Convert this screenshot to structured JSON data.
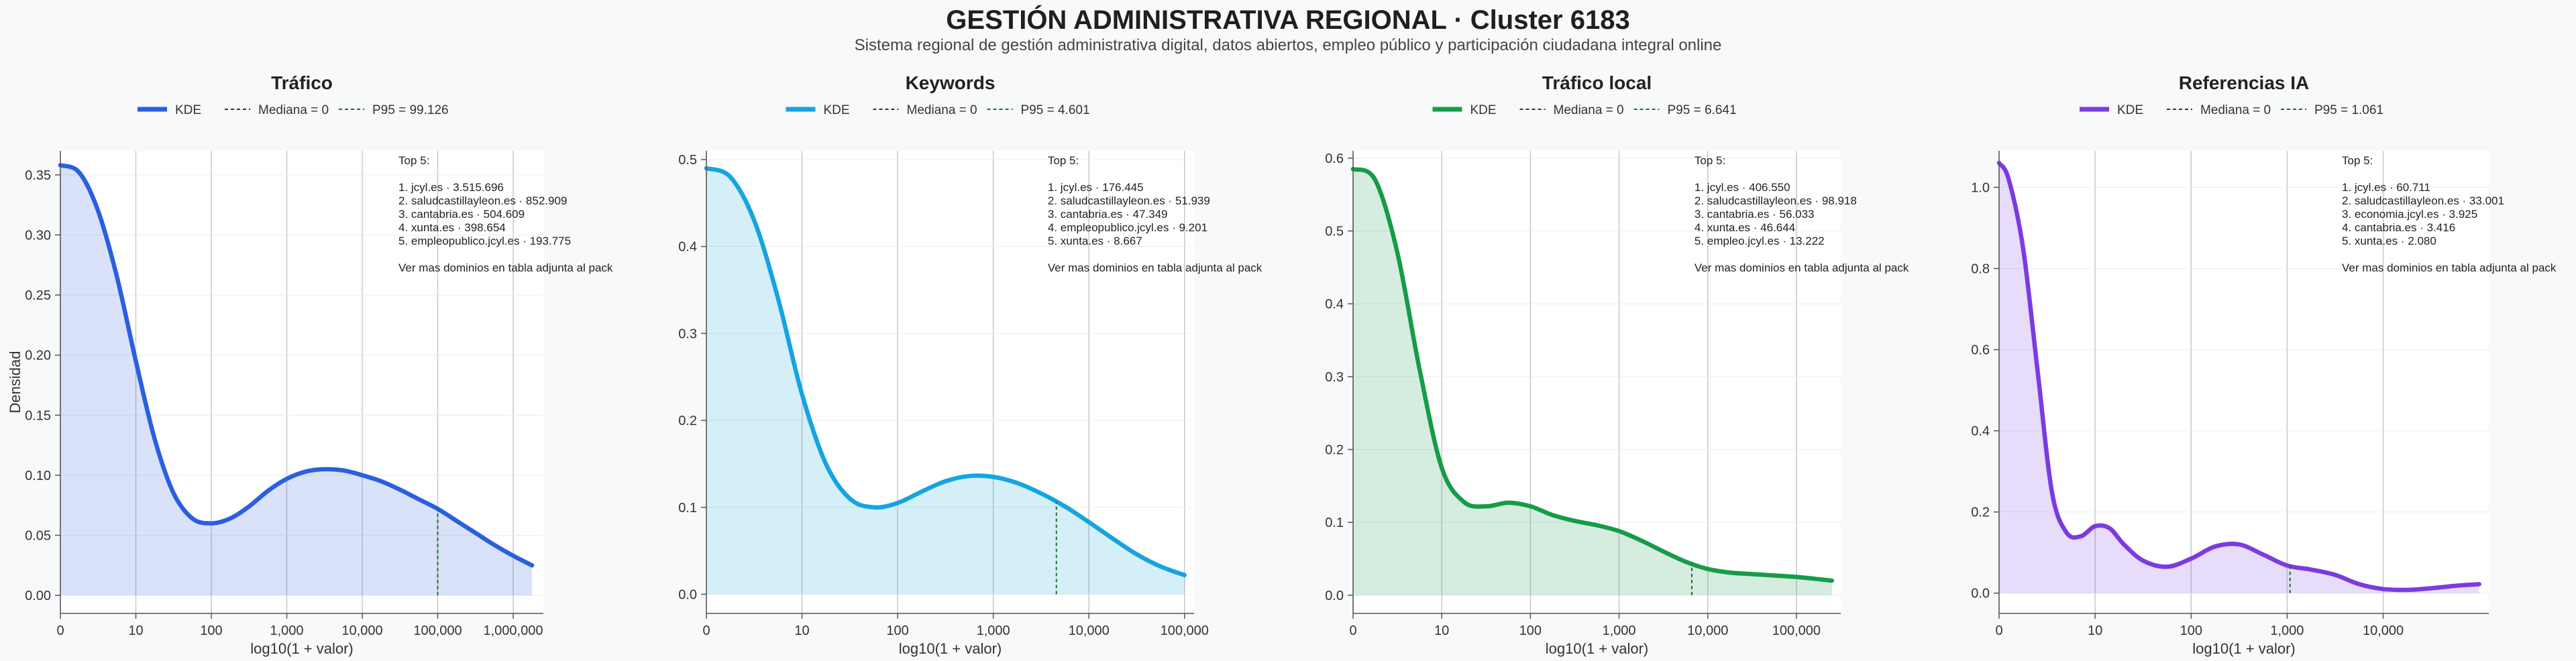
{
  "title": "GESTIÓN ADMINISTRATIVA REGIONAL · Cluster 6183",
  "subtitle": "Sistema regional de gestión administrativa digital, datos abiertos, empleo público y participación ciudadana integral online",
  "colors": {
    "trafico": "#2a5fe0",
    "keywords": "#16a4e0",
    "local": "#169c48",
    "ia": "#7b3be0",
    "grid": "#c8c8c8",
    "axis": "#555555"
  },
  "chart_data": [
    {
      "type": "area",
      "title": "Tráfico",
      "xlabel": "log10(1 + valor)",
      "ylabel": "Densidad",
      "x_scale": "log10(1+valor)",
      "xlim": [
        0,
        6.4
      ],
      "ylim": [
        -0.015,
        0.37
      ],
      "x_ticks": [
        0,
        1,
        2,
        3,
        4,
        5,
        6
      ],
      "x_tick_labels": [
        "0",
        "10",
        "100",
        "1,000",
        "10,000",
        "100,000",
        "1,000,000"
      ],
      "y_ticks": [
        0,
        0.05,
        0.1,
        0.15,
        0.2,
        0.25,
        0.3,
        0.35
      ],
      "y_tick_labels": [
        "0.00",
        "0.05",
        "0.10",
        "0.15",
        "0.20",
        "0.25",
        "0.30",
        "0.35"
      ],
      "legend": {
        "kde": "KDE",
        "median": "Mediana = 0",
        "p95": "P95 = 99.126"
      },
      "series": [
        {
          "name": "KDE",
          "x": [
            0,
            0.25,
            0.5,
            0.75,
            1,
            1.25,
            1.5,
            1.75,
            2,
            2.25,
            2.5,
            2.75,
            3,
            3.25,
            3.5,
            3.75,
            4,
            4.25,
            4.5,
            4.75,
            5,
            5.25,
            5.5,
            5.75,
            6,
            6.25
          ],
          "y": [
            0.358,
            0.352,
            0.32,
            0.265,
            0.195,
            0.13,
            0.085,
            0.064,
            0.06,
            0.064,
            0.074,
            0.087,
            0.097,
            0.103,
            0.105,
            0.104,
            0.1,
            0.095,
            0.088,
            0.08,
            0.072,
            0.062,
            0.052,
            0.042,
            0.033,
            0.025
          ]
        }
      ],
      "p95_x": 5.0,
      "annotation": [
        "Top 5:",
        "",
        "1. jcyl.es · 3.515.696",
        "2. saludcastillayleon.es · 852.909",
        "3. cantabria.es · 504.609",
        "4. xunta.es · 398.654",
        "5. empleopublico.jcyl.es · 193.775",
        "",
        "Ver mas dominios en tabla adjunta al pack"
      ]
    },
    {
      "type": "area",
      "title": "Keywords",
      "xlabel": "log10(1 + valor)",
      "ylabel": "",
      "x_scale": "log10(1+valor)",
      "xlim": [
        0,
        5.1
      ],
      "ylim": [
        -0.022,
        0.51
      ],
      "x_ticks": [
        0,
        1,
        2,
        3,
        4,
        5
      ],
      "x_tick_labels": [
        "0",
        "10",
        "100",
        "1,000",
        "10,000",
        "100,000"
      ],
      "y_ticks": [
        0,
        0.1,
        0.2,
        0.3,
        0.4,
        0.5
      ],
      "y_tick_labels": [
        "0.0",
        "0.1",
        "0.2",
        "0.3",
        "0.4",
        "0.5"
      ],
      "legend": {
        "kde": "KDE",
        "median": "Mediana = 0",
        "p95": "P95 = 4.601"
      },
      "series": [
        {
          "name": "KDE",
          "x": [
            0,
            0.25,
            0.5,
            0.75,
            1,
            1.25,
            1.5,
            1.75,
            2,
            2.25,
            2.5,
            2.75,
            3,
            3.25,
            3.5,
            3.75,
            4,
            4.25,
            4.5,
            4.75,
            5
          ],
          "y": [
            0.49,
            0.48,
            0.43,
            0.34,
            0.23,
            0.15,
            0.11,
            0.1,
            0.105,
            0.118,
            0.13,
            0.136,
            0.135,
            0.128,
            0.116,
            0.101,
            0.083,
            0.064,
            0.046,
            0.032,
            0.022
          ]
        }
      ],
      "p95_x": 3.66,
      "annotation": [
        "Top 5:",
        "",
        "1. jcyl.es · 176.445",
        "2. saludcastillayleon.es · 51.939",
        "3. cantabria.es · 47.349",
        "4. empleopublico.jcyl.es · 9.201",
        "5. xunta.es · 8.667",
        "",
        "Ver mas dominios en tabla adjunta al pack"
      ]
    },
    {
      "type": "area",
      "title": "Tráfico local",
      "xlabel": "log10(1 + valor)",
      "ylabel": "",
      "x_scale": "log10(1+valor)",
      "xlim": [
        0,
        5.5
      ],
      "ylim": [
        -0.025,
        0.61
      ],
      "x_ticks": [
        0,
        1,
        2,
        3,
        4,
        5
      ],
      "x_tick_labels": [
        "0",
        "10",
        "100",
        "1,000",
        "10,000",
        "100,000"
      ],
      "y_ticks": [
        0,
        0.1,
        0.2,
        0.3,
        0.4,
        0.5,
        0.6
      ],
      "y_tick_labels": [
        "0.0",
        "0.1",
        "0.2",
        "0.3",
        "0.4",
        "0.5",
        "0.6"
      ],
      "legend": {
        "kde": "KDE",
        "median": "Mediana = 0",
        "p95": "P95 = 6.641"
      },
      "series": [
        {
          "name": "KDE",
          "x": [
            0,
            0.25,
            0.5,
            0.75,
            1,
            1.25,
            1.5,
            1.75,
            2,
            2.25,
            2.5,
            2.75,
            3,
            3.25,
            3.5,
            3.75,
            4,
            4.25,
            4.5,
            4.75,
            5,
            5.25,
            5.4
          ],
          "y": [
            0.585,
            0.57,
            0.47,
            0.31,
            0.175,
            0.128,
            0.122,
            0.127,
            0.122,
            0.11,
            0.102,
            0.096,
            0.088,
            0.075,
            0.06,
            0.046,
            0.036,
            0.031,
            0.029,
            0.027,
            0.025,
            0.022,
            0.02
          ]
        }
      ],
      "p95_x": 3.82,
      "annotation": [
        "Top 5:",
        "",
        "1. jcyl.es · 406.550",
        "2. saludcastillayleon.es · 98.918",
        "3. cantabria.es · 56.033",
        "4. xunta.es · 46.644",
        "5. empleo.jcyl.es · 13.222",
        "",
        "Ver mas dominios en tabla adjunta al pack"
      ]
    },
    {
      "type": "area",
      "title": "Referencias IA",
      "xlabel": "log10(1 + valor)",
      "ylabel": "",
      "x_scale": "log10(1+valor)",
      "xlim": [
        0,
        5.1
      ],
      "ylim": [
        -0.05,
        1.09
      ],
      "x_ticks": [
        0,
        1,
        2,
        3,
        4
      ],
      "x_tick_labels": [
        "0",
        "10",
        "100",
        "1,000",
        "10,000"
      ],
      "y_ticks": [
        0,
        0.2,
        0.4,
        0.6,
        0.8,
        1.0
      ],
      "y_tick_labels": [
        "0.0",
        "0.2",
        "0.4",
        "0.6",
        "0.8",
        "1.0"
      ],
      "legend": {
        "kde": "KDE",
        "median": "Mediana = 0",
        "p95": "P95 = 1.061"
      },
      "series": [
        {
          "name": "KDE",
          "x": [
            0,
            0.1,
            0.25,
            0.4,
            0.55,
            0.7,
            0.85,
            1,
            1.15,
            1.3,
            1.5,
            1.75,
            2,
            2.25,
            2.5,
            2.75,
            3,
            3.25,
            3.5,
            3.75,
            4,
            4.25,
            4.5,
            4.75,
            5
          ],
          "y": [
            1.06,
            1.02,
            0.85,
            0.55,
            0.25,
            0.15,
            0.14,
            0.165,
            0.16,
            0.12,
            0.08,
            0.065,
            0.085,
            0.115,
            0.12,
            0.095,
            0.068,
            0.058,
            0.045,
            0.022,
            0.01,
            0.008,
            0.012,
            0.018,
            0.022
          ]
        }
      ],
      "p95_x": 3.03,
      "annotation": [
        "Top 5:",
        "",
        "1. jcyl.es · 60.711",
        "2. saludcastillayleon.es · 33.001",
        "3. economia.jcyl.es · 3.925",
        "4. cantabria.es · 3.416",
        "5. xunta.es · 2.080",
        "",
        "Ver mas dominios en tabla adjunta al pack"
      ]
    }
  ]
}
